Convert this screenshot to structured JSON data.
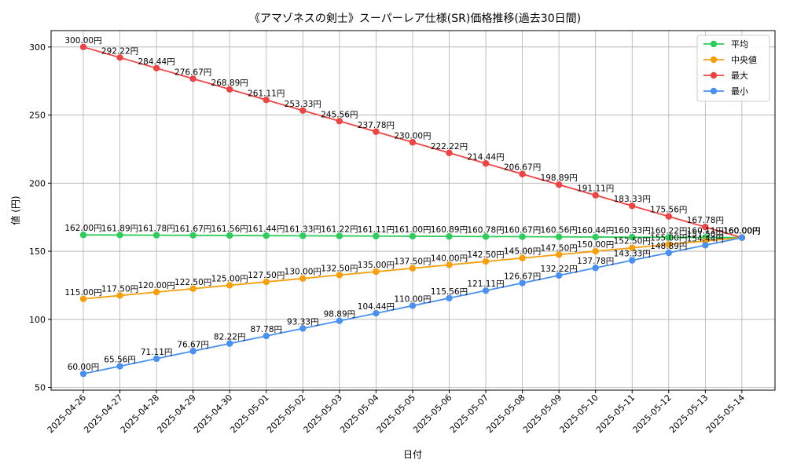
{
  "chart_data": {
    "type": "line",
    "title": "《アマゾネスの剣士》スーパーレア仕様(SR)価格推移(過去30日間)",
    "xlabel": "日付",
    "ylabel": "値 (円)",
    "ylim": [
      48,
      312
    ],
    "yticks": [
      50,
      100,
      150,
      200,
      250,
      300
    ],
    "grid": true,
    "legend_position": "top-right",
    "value_suffix": "円",
    "categories": [
      "2025-04-26",
      "2025-04-27",
      "2025-04-28",
      "2025-04-29",
      "2025-04-30",
      "2025-05-01",
      "2025-05-02",
      "2025-05-03",
      "2025-05-04",
      "2025-05-05",
      "2025-05-06",
      "2025-05-07",
      "2025-05-08",
      "2025-05-09",
      "2025-05-10",
      "2025-05-11",
      "2025-05-12",
      "2025-05-13",
      "2025-05-14"
    ],
    "series": [
      {
        "name": "平均",
        "color": "#2ecc5a",
        "values": [
          162.0,
          161.89,
          161.78,
          161.67,
          161.56,
          161.44,
          161.33,
          161.22,
          161.11,
          161.0,
          160.89,
          160.78,
          160.67,
          160.56,
          160.44,
          160.33,
          160.22,
          160.11,
          160.0
        ]
      },
      {
        "name": "中央値",
        "color": "#f5a00a",
        "values": [
          115.0,
          117.5,
          120.0,
          122.5,
          125.0,
          127.5,
          130.0,
          132.5,
          135.0,
          137.5,
          140.0,
          142.5,
          145.0,
          147.5,
          150.0,
          152.5,
          155.0,
          157.5,
          160.0
        ]
      },
      {
        "name": "最大",
        "color": "#ef4444",
        "values": [
          300.0,
          292.22,
          284.44,
          276.67,
          268.89,
          261.11,
          253.33,
          245.56,
          237.78,
          230.0,
          222.22,
          214.44,
          206.67,
          198.89,
          191.11,
          183.33,
          175.56,
          167.78,
          160.0
        ]
      },
      {
        "name": "最小",
        "color": "#4a90f0",
        "values": [
          60.0,
          65.56,
          71.11,
          76.67,
          82.22,
          87.78,
          93.33,
          98.89,
          104.44,
          110.0,
          115.56,
          121.11,
          126.67,
          132.22,
          137.78,
          143.33,
          148.89,
          154.44,
          160.0
        ]
      }
    ]
  }
}
